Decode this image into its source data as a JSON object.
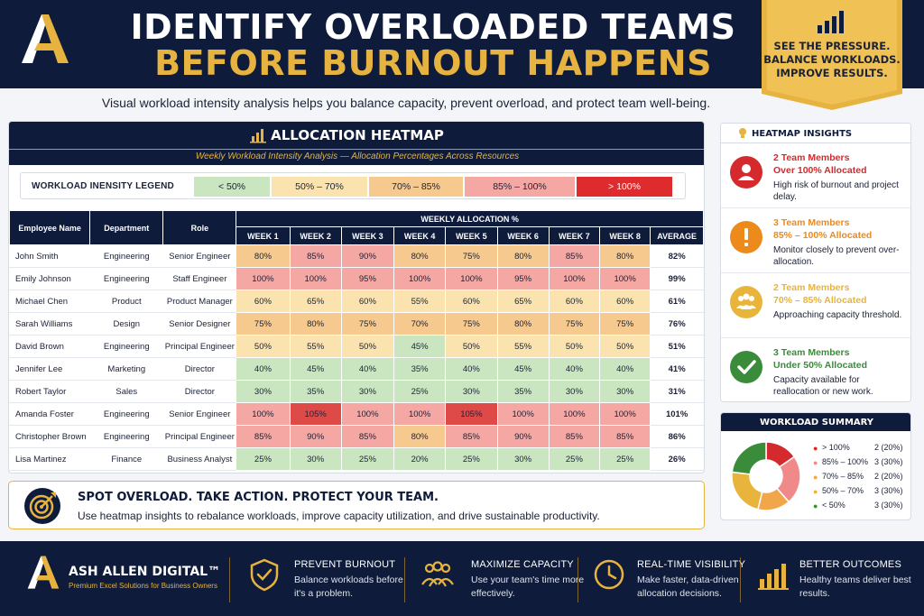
{
  "header": {
    "title_line1": "IDENTIFY OVERLOADED TEAMS",
    "title_line2": "BEFORE BURNOUT HAPPENS",
    "ribbon_line1": "SEE THE PRESSURE.",
    "ribbon_line2": "BALANCE WORKLOADS.",
    "ribbon_line3": "IMPROVE RESULTS."
  },
  "subtitle": "Visual workload intensity analysis helps you balance capacity, prevent overload, and protect team well-being.",
  "heatmap": {
    "title": "ALLOCATION HEATMAP",
    "subtitle": "Weekly Workload Intensity Analysis — Allocation Percentages Across Resources",
    "legend_label": "WORKLOAD INENSITY LEGEND",
    "legend": [
      {
        "label": "< 50%",
        "color": "#c9e6c1"
      },
      {
        "label": "50% – 70%",
        "color": "#fbe3b0"
      },
      {
        "label": "70% – 85%",
        "color": "#f6c98f"
      },
      {
        "label": "85% – 100%",
        "color": "#f5a7a3"
      },
      {
        "label": "> 100%",
        "color": "#dd2b2e"
      }
    ],
    "columns": {
      "name": "Employee Name",
      "department": "Department",
      "role": "Role",
      "group": "WEEKLY ALLOCATION %",
      "weeks": [
        "WEEK 1",
        "WEEK 2",
        "WEEK 3",
        "WEEK 4",
        "WEEK 5",
        "WEEK 6",
        "WEEK 7",
        "WEEK 8"
      ],
      "average": "AVERAGE"
    },
    "rows": [
      {
        "name": "John Smith",
        "department": "Engineering",
        "role": "Senior Engineer",
        "weeks": [
          "80%",
          "85%",
          "90%",
          "80%",
          "75%",
          "80%",
          "85%",
          "80%"
        ],
        "average": "82%"
      },
      {
        "name": "Emily Johnson",
        "department": "Engineering",
        "role": "Staff Engineer",
        "weeks": [
          "100%",
          "100%",
          "95%",
          "100%",
          "100%",
          "95%",
          "100%",
          "100%"
        ],
        "average": "99%"
      },
      {
        "name": "Michael Chen",
        "department": "Product",
        "role": "Product Manager",
        "weeks": [
          "60%",
          "65%",
          "60%",
          "55%",
          "60%",
          "65%",
          "60%",
          "60%"
        ],
        "average": "61%"
      },
      {
        "name": "Sarah Williams",
        "department": "Design",
        "role": "Senior Designer",
        "weeks": [
          "75%",
          "80%",
          "75%",
          "70%",
          "75%",
          "80%",
          "75%",
          "75%"
        ],
        "average": "76%"
      },
      {
        "name": "David Brown",
        "department": "Engineering",
        "role": "Principal Engineer",
        "weeks": [
          "50%",
          "55%",
          "50%",
          "45%",
          "50%",
          "55%",
          "50%",
          "50%"
        ],
        "average": "51%"
      },
      {
        "name": "Jennifer Lee",
        "department": "Marketing",
        "role": "Director",
        "weeks": [
          "40%",
          "45%",
          "40%",
          "35%",
          "40%",
          "45%",
          "40%",
          "40%"
        ],
        "average": "41%"
      },
      {
        "name": "Robert Taylor",
        "department": "Sales",
        "role": "Director",
        "weeks": [
          "30%",
          "35%",
          "30%",
          "25%",
          "30%",
          "35%",
          "30%",
          "30%"
        ],
        "average": "31%"
      },
      {
        "name": "Amanda Foster",
        "department": "Engineering",
        "role": "Senior Engineer",
        "weeks": [
          "100%",
          "105%",
          "100%",
          "100%",
          "105%",
          "100%",
          "100%",
          "100%"
        ],
        "average": "101%"
      },
      {
        "name": "Christopher Brown",
        "department": "Engineering",
        "role": "Principal Engineer",
        "weeks": [
          "85%",
          "90%",
          "85%",
          "80%",
          "85%",
          "90%",
          "85%",
          "85%"
        ],
        "average": "86%"
      },
      {
        "name": "Lisa Martinez",
        "department": "Finance",
        "role": "Business Analyst",
        "weeks": [
          "25%",
          "30%",
          "25%",
          "20%",
          "25%",
          "30%",
          "25%",
          "25%"
        ],
        "average": "26%"
      }
    ]
  },
  "banner": {
    "title": "SPOT OVERLOAD. TAKE ACTION. PROTECT YOUR TEAM.",
    "text": "Use heatmap insights to rebalance workloads, improve capacity utilization, and drive sustainable productivity."
  },
  "insights": {
    "title": "HEATMAP INSIGHTS",
    "items": [
      {
        "line1": "2 Team Members",
        "line2": "Over 100% Allocated",
        "desc": "High risk of burnout and project delay.",
        "color": "#d42a2d",
        "icon": "person-icon"
      },
      {
        "line1": "3 Team Members",
        "line2": "85% – 100% Allocated",
        "desc": "Monitor closely to prevent over-allocation.",
        "color": "#ec8a1c",
        "icon": "exclamation-icon"
      },
      {
        "line1": "2 Team Members",
        "line2": "70% – 85% Allocated",
        "desc": "Approaching capacity threshold.",
        "color": "#e8b43b",
        "icon": "group-icon"
      },
      {
        "line1": "3 Team Members",
        "line2": "Under 50% Allocated",
        "desc": "Capacity available for reallocation or new work.",
        "color": "#3a8c3a",
        "icon": "check-icon"
      }
    ]
  },
  "summary": {
    "title": "WORKLOAD SUMMARY",
    "items": [
      {
        "label": "> 100%",
        "value": "2 (20%)",
        "count": 2,
        "color": "#d42a2d"
      },
      {
        "label": "85% – 100%",
        "value": "3 (30%)",
        "count": 3,
        "color": "#f08a8a"
      },
      {
        "label": "70% – 85%",
        "value": "2 (20%)",
        "count": 2,
        "color": "#f2a64a"
      },
      {
        "label": "50% – 70%",
        "value": "3 (30%)",
        "count": 3,
        "color": "#e8b43b"
      },
      {
        "label": "< 50%",
        "value": "3 (30%)",
        "count": 3,
        "color": "#3a8c3a"
      }
    ]
  },
  "footer": {
    "brand": "ASH ALLEN DIGITAL™",
    "tagline": "Premium Excel Solutions for Business Owners",
    "features": [
      {
        "title": "PREVENT BURNOUT",
        "text": "Balance workloads before it's a problem.",
        "icon": "shield-check-icon"
      },
      {
        "title": "MAXIMIZE CAPACITY",
        "text": "Use your team's time more effectively.",
        "icon": "team-icon"
      },
      {
        "title": "REAL-TIME VISIBILITY",
        "text": "Make faster, data-driven allocation decisions.",
        "icon": "clock-icon"
      },
      {
        "title": "BETTER OUTCOMES",
        "text": "Healthy teams deliver best results.",
        "icon": "growth-chart-icon"
      }
    ]
  }
}
